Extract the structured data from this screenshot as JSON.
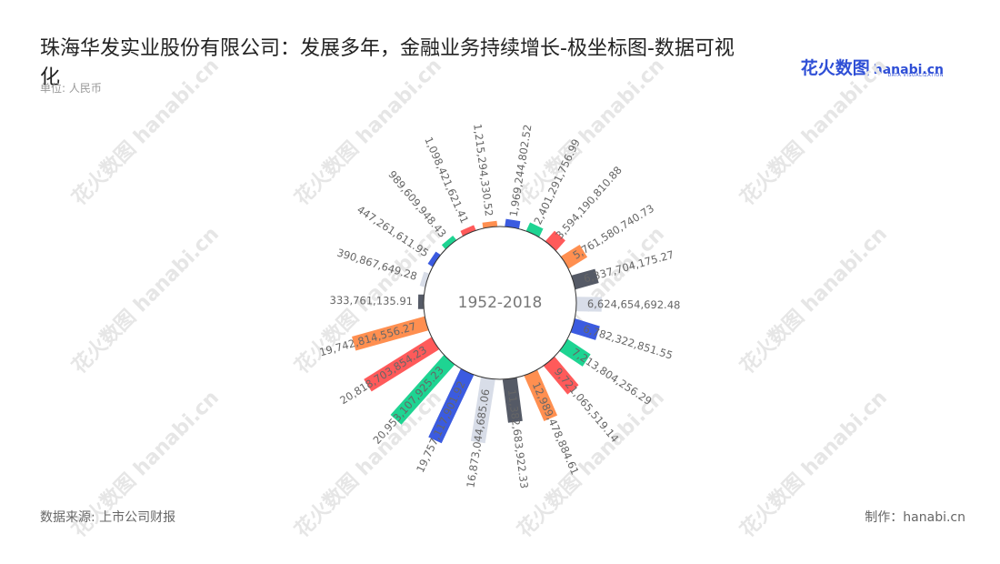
{
  "title": "珠海华发实业股份有限公司：发展多年，金融业务持续增长-极坐标图-数据可视化",
  "unit": "单位: 人民币",
  "logo": {
    "cn": "花火数图",
    "en": "hanabi.cn",
    "sub": "DATA VISUALIZATION"
  },
  "watermark": "花火数图 hanabi.cn",
  "source": "数据来源: 上市公司财报",
  "credit": "制作：hanabi.cn",
  "chart_data": {
    "type": "bar",
    "polar": true,
    "center_label": "1952-2018",
    "palette": [
      "#3b5be0",
      "#1ed492",
      "#ff5a5a",
      "#ff8f50",
      "#555a66",
      "#d8dde8"
    ],
    "values": [
      1969244802.52,
      2401291756.99,
      3594190810.88,
      5761580740.73,
      6337704175.27,
      6624654692.48,
      6782322851.55,
      7213804256.29,
      9721065519.14,
      12989478884.61,
      11382683922.33,
      16873044685.06,
      19757117901.92,
      20953107925.23,
      20818703854.23,
      19742814556.27,
      333761135.91,
      390867649.28,
      447261611.95,
      989609948.43,
      1098421621.41,
      1215294330.52
    ],
    "labels": [
      "1,969,244,802.52",
      "2,401,291,756.99",
      "3,594,190,810.88",
      "5,761,580,740.73",
      "6,337,704,175.27",
      "6,624,654,692.48",
      "6,782,322,851.55",
      "7,213,804,256.29",
      "9,721,065,519.14",
      "12,989,478,884.61",
      "11,382,683,922.33",
      "16,873,044,685.06",
      "19,757,117,901.92",
      "20,953,107,925.23",
      "20,818,703,854.23",
      "19,742,814,556.27",
      "333,761,135.91",
      "390,867,649.28",
      "447,261,611.95",
      "989,609,948.43",
      "1,098,421,621.41",
      "1,215,294,330.52"
    ]
  }
}
